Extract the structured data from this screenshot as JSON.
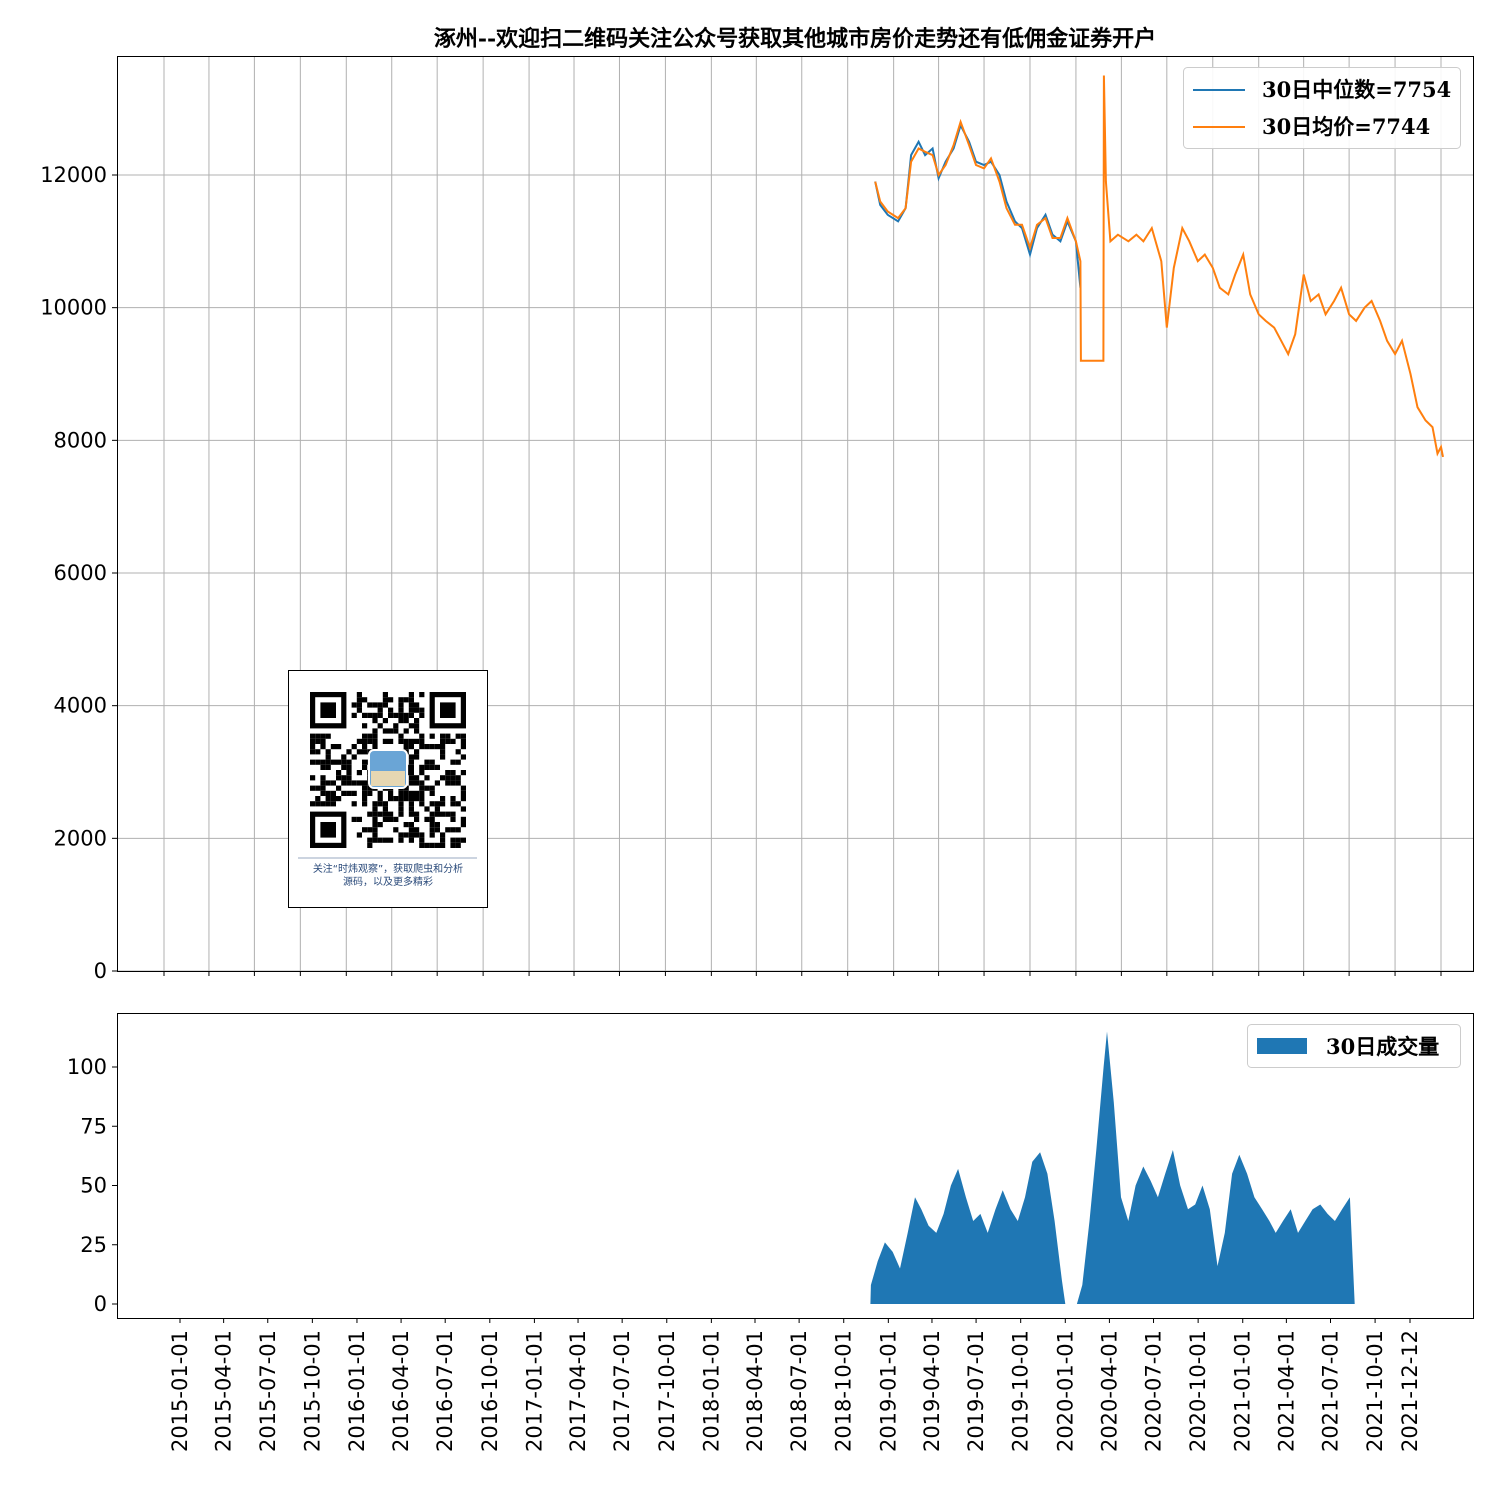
{
  "chart_data": [
    {
      "type": "line",
      "title": "涿州--欢迎扫二维码关注公众号获取其他城市房价走势还有低佣金证券开户",
      "ylim": [
        0,
        13700
      ],
      "yticks": [
        0,
        2000,
        4000,
        6000,
        8000,
        10000,
        12000
      ],
      "grid": true,
      "legend_position": "top-right",
      "series": [
        {
          "name": "30日中位数=7754",
          "color": "#1f77b4",
          "points": [
            [
              "2018-11-25",
              11900
            ],
            [
              "2018-12-05",
              11550
            ],
            [
              "2018-12-20",
              11400
            ],
            [
              "2019-01-10",
              11300
            ],
            [
              "2019-01-25",
              11500
            ],
            [
              "2019-02-05",
              12300
            ],
            [
              "2019-02-20",
              12500
            ],
            [
              "2019-03-05",
              12300
            ],
            [
              "2019-03-20",
              12400
            ],
            [
              "2019-04-01",
              11950
            ],
            [
              "2019-04-15",
              12200
            ],
            [
              "2019-05-01",
              12400
            ],
            [
              "2019-05-15",
              12750
            ],
            [
              "2019-06-01",
              12500
            ],
            [
              "2019-06-15",
              12200
            ],
            [
              "2019-07-01",
              12150
            ],
            [
              "2019-07-15",
              12200
            ],
            [
              "2019-08-01",
              12000
            ],
            [
              "2019-08-15",
              11600
            ],
            [
              "2019-09-01",
              11300
            ],
            [
              "2019-09-15",
              11200
            ],
            [
              "2019-10-01",
              10800
            ],
            [
              "2019-10-15",
              11200
            ],
            [
              "2019-11-01",
              11400
            ],
            [
              "2019-11-15",
              11100
            ],
            [
              "2019-12-01",
              11000
            ],
            [
              "2019-12-15",
              11300
            ],
            [
              "2020-01-01",
              11000
            ],
            [
              "2020-01-10",
              10300
            ]
          ]
        },
        {
          "name": "30日均价=7744",
          "color": "#ff7f0e",
          "points": [
            [
              "2018-11-25",
              11900
            ],
            [
              "2018-12-05",
              11600
            ],
            [
              "2018-12-20",
              11450
            ],
            [
              "2019-01-10",
              11350
            ],
            [
              "2019-01-25",
              11500
            ],
            [
              "2019-02-05",
              12200
            ],
            [
              "2019-02-20",
              12400
            ],
            [
              "2019-03-05",
              12350
            ],
            [
              "2019-03-20",
              12300
            ],
            [
              "2019-04-01",
              12000
            ],
            [
              "2019-04-15",
              12150
            ],
            [
              "2019-05-01",
              12450
            ],
            [
              "2019-05-15",
              12800
            ],
            [
              "2019-06-01",
              12450
            ],
            [
              "2019-06-15",
              12150
            ],
            [
              "2019-07-01",
              12100
            ],
            [
              "2019-07-15",
              12250
            ],
            [
              "2019-08-01",
              11900
            ],
            [
              "2019-08-15",
              11500
            ],
            [
              "2019-09-01",
              11250
            ],
            [
              "2019-09-15",
              11250
            ],
            [
              "2019-10-01",
              10900
            ],
            [
              "2019-10-15",
              11250
            ],
            [
              "2019-11-01",
              11350
            ],
            [
              "2019-11-15",
              11050
            ],
            [
              "2019-12-01",
              11050
            ],
            [
              "2019-12-15",
              11350
            ],
            [
              "2020-01-01",
              11000
            ],
            [
              "2020-01-10",
              10700
            ],
            [
              "2020-01-11",
              9200
            ],
            [
              "2020-02-25",
              9200
            ],
            [
              "2020-02-26",
              13500
            ],
            [
              "2020-03-01",
              11900
            ],
            [
              "2020-03-10",
              11000
            ],
            [
              "2020-03-25",
              11100
            ],
            [
              "2020-04-15",
              11000
            ],
            [
              "2020-05-01",
              11100
            ],
            [
              "2020-05-15",
              11000
            ],
            [
              "2020-06-01",
              11200
            ],
            [
              "2020-06-20",
              10700
            ],
            [
              "2020-07-01",
              9700
            ],
            [
              "2020-07-15",
              10600
            ],
            [
              "2020-08-01",
              11200
            ],
            [
              "2020-08-15",
              11000
            ],
            [
              "2020-09-01",
              10700
            ],
            [
              "2020-09-15",
              10800
            ],
            [
              "2020-10-01",
              10600
            ],
            [
              "2020-10-15",
              10300
            ],
            [
              "2020-11-01",
              10200
            ],
            [
              "2020-11-15",
              10500
            ],
            [
              "2020-12-01",
              10800
            ],
            [
              "2020-12-15",
              10200
            ],
            [
              "2021-01-01",
              9900
            ],
            [
              "2021-01-15",
              9800
            ],
            [
              "2021-02-01",
              9700
            ],
            [
              "2021-02-15",
              9500
            ],
            [
              "2021-03-01",
              9300
            ],
            [
              "2021-03-15",
              9600
            ],
            [
              "2021-04-01",
              10500
            ],
            [
              "2021-04-15",
              10100
            ],
            [
              "2021-05-01",
              10200
            ],
            [
              "2021-05-15",
              9900
            ],
            [
              "2021-06-01",
              10100
            ],
            [
              "2021-06-15",
              10300
            ],
            [
              "2021-07-01",
              9900
            ],
            [
              "2021-07-15",
              9800
            ],
            [
              "2021-08-01",
              10000
            ],
            [
              "2021-08-15",
              10100
            ],
            [
              "2021-09-01",
              9800
            ],
            [
              "2021-09-15",
              9500
            ],
            [
              "2021-10-01",
              9300
            ],
            [
              "2021-10-15",
              9500
            ],
            [
              "2021-11-01",
              9000
            ],
            [
              "2021-11-15",
              8500
            ],
            [
              "2021-12-01",
              8300
            ],
            [
              "2021-12-15",
              8200
            ],
            [
              "2021-12-25",
              7800
            ],
            [
              "2022-01-01",
              7900
            ],
            [
              "2022-01-05",
              7750
            ]
          ]
        }
      ]
    },
    {
      "type": "area",
      "ylim": [
        -5,
        120
      ],
      "yticks": [
        0,
        25,
        50,
        75,
        100
      ],
      "grid": false,
      "legend_position": "top-right",
      "xtick_labels": [
        "2015-01-01",
        "2015-04-01",
        "2015-07-01",
        "2015-10-01",
        "2016-01-01",
        "2016-04-01",
        "2016-07-01",
        "2016-10-01",
        "2017-01-01",
        "2017-04-01",
        "2017-07-01",
        "2017-10-01",
        "2018-01-01",
        "2018-04-01",
        "2018-07-01",
        "2018-10-01",
        "2019-01-01",
        "2019-04-01",
        "2019-07-01",
        "2019-10-01",
        "2020-01-01",
        "2020-04-01",
        "2020-07-01",
        "2020-10-01",
        "2021-01-01",
        "2021-04-01",
        "2021-07-01",
        "2021-10-01",
        "2021-12-12"
      ],
      "series": [
        {
          "name": "30日成交量",
          "color": "#1f77b4",
          "points": [
            [
              "2018-11-25",
              0
            ],
            [
              "2018-11-26",
              8
            ],
            [
              "2018-12-10",
              18
            ],
            [
              "2018-12-25",
              26
            ],
            [
              "2019-01-10",
              22
            ],
            [
              "2019-01-25",
              15
            ],
            [
              "2019-02-10",
              30
            ],
            [
              "2019-02-25",
              45
            ],
            [
              "2019-03-10",
              40
            ],
            [
              "2019-03-25",
              33
            ],
            [
              "2019-04-10",
              30
            ],
            [
              "2019-04-25",
              38
            ],
            [
              "2019-05-10",
              50
            ],
            [
              "2019-05-25",
              57
            ],
            [
              "2019-06-10",
              45
            ],
            [
              "2019-06-25",
              35
            ],
            [
              "2019-07-10",
              38
            ],
            [
              "2019-07-25",
              30
            ],
            [
              "2019-08-10",
              40
            ],
            [
              "2019-08-25",
              48
            ],
            [
              "2019-09-10",
              40
            ],
            [
              "2019-09-25",
              35
            ],
            [
              "2019-10-10",
              45
            ],
            [
              "2019-10-25",
              60
            ],
            [
              "2019-11-10",
              64
            ],
            [
              "2019-11-25",
              55
            ],
            [
              "2019-12-10",
              35
            ],
            [
              "2019-12-25",
              10
            ],
            [
              "2020-01-01",
              0
            ],
            [
              "2020-01-25",
              0
            ],
            [
              "2020-02-05",
              8
            ],
            [
              "2020-02-20",
              35
            ],
            [
              "2020-03-05",
              65
            ],
            [
              "2020-03-20",
              100
            ],
            [
              "2020-03-27",
              115
            ],
            [
              "2020-04-10",
              85
            ],
            [
              "2020-04-25",
              45
            ],
            [
              "2020-05-10",
              35
            ],
            [
              "2020-05-25",
              50
            ],
            [
              "2020-06-10",
              58
            ],
            [
              "2020-06-25",
              52
            ],
            [
              "2020-07-10",
              45
            ],
            [
              "2020-07-25",
              55
            ],
            [
              "2020-08-10",
              65
            ],
            [
              "2020-08-25",
              50
            ],
            [
              "2020-09-10",
              40
            ],
            [
              "2020-09-25",
              42
            ],
            [
              "2020-10-10",
              50
            ],
            [
              "2020-10-25",
              40
            ],
            [
              "2020-11-10",
              16
            ],
            [
              "2020-11-25",
              30
            ],
            [
              "2020-12-10",
              55
            ],
            [
              "2020-12-25",
              63
            ],
            [
              "2021-01-10",
              55
            ],
            [
              "2021-01-25",
              45
            ],
            [
              "2021-02-10",
              40
            ],
            [
              "2021-02-25",
              35
            ],
            [
              "2021-03-10",
              30
            ],
            [
              "2021-03-25",
              35
            ],
            [
              "2021-04-10",
              40
            ],
            [
              "2021-04-25",
              30
            ],
            [
              "2021-05-10",
              35
            ],
            [
              "2021-05-25",
              40
            ],
            [
              "2021-06-10",
              42
            ],
            [
              "2021-06-25",
              38
            ],
            [
              "2021-07-10",
              35
            ],
            [
              "2021-07-25",
              40
            ],
            [
              "2021-08-10",
              45
            ],
            [
              "2021-08-20",
              0
            ]
          ]
        }
      ]
    }
  ],
  "qr_widget": {
    "caption_line1": "关注“时炜观察”，获取爬虫和分析",
    "caption_line2": "源码，以及更多精彩"
  }
}
